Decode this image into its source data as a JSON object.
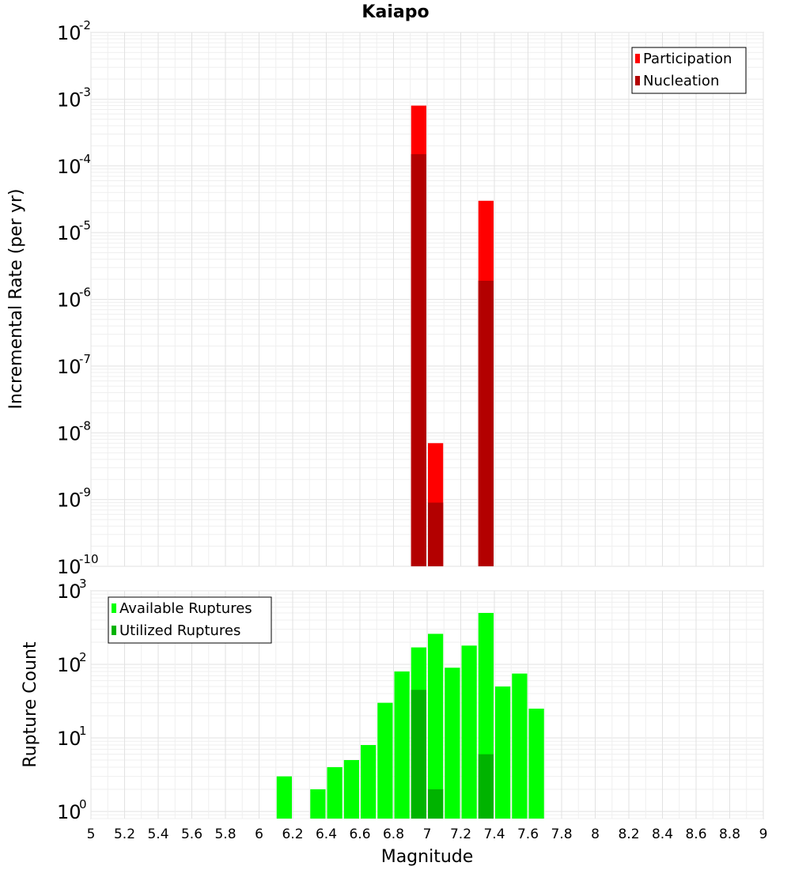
{
  "chart_data": [
    {
      "type": "bar",
      "title": "Kaiapo",
      "xlabel": "",
      "ylabel": "Incremental Rate (per yr)",
      "yscale": "log",
      "ylim": [
        1e-10,
        0.01
      ],
      "xlim": [
        5,
        9
      ],
      "yticks": [
        {
          "base": "10",
          "exp": "-2"
        },
        {
          "base": "10",
          "exp": "-3"
        },
        {
          "base": "10",
          "exp": "-4"
        },
        {
          "base": "10",
          "exp": "-5"
        },
        {
          "base": "10",
          "exp": "-6"
        },
        {
          "base": "10",
          "exp": "-7"
        },
        {
          "base": "10",
          "exp": "-8"
        },
        {
          "base": "10",
          "exp": "-9"
        },
        {
          "base": "10",
          "exp": "-10"
        }
      ],
      "legend_position": "top-right",
      "series": [
        {
          "name": "Participation",
          "color": "#ff0000",
          "x": [
            6.95,
            7.05,
            7.35
          ],
          "values": [
            0.0008,
            7e-09,
            3e-05
          ]
        },
        {
          "name": "Nucleation",
          "color": "#b30000",
          "x": [
            6.95,
            7.05,
            7.35
          ],
          "values": [
            0.00015,
            9e-10,
            1.9e-06
          ]
        }
      ]
    },
    {
      "type": "bar",
      "title": "",
      "xlabel": "Magnitude",
      "ylabel": "Rupture Count",
      "yscale": "log",
      "ylim": [
        0.8,
        1000
      ],
      "xlim": [
        5,
        9
      ],
      "yticks": [
        {
          "base": "10",
          "exp": "3"
        },
        {
          "base": "10",
          "exp": "2"
        },
        {
          "base": "10",
          "exp": "1"
        },
        {
          "base": "10",
          "exp": "0"
        }
      ],
      "xticks": [
        "5",
        "5.2",
        "5.4",
        "5.6",
        "5.8",
        "6",
        "6.2",
        "6.4",
        "6.6",
        "6.8",
        "7",
        "7.2",
        "7.4",
        "7.6",
        "7.8",
        "8",
        "8.2",
        "8.4",
        "8.6",
        "8.8",
        "9"
      ],
      "legend_position": "top-left",
      "series": [
        {
          "name": "Available Ruptures",
          "color": "#00ff00",
          "x": [
            6.15,
            6.35,
            6.45,
            6.55,
            6.65,
            6.75,
            6.85,
            6.95,
            7.05,
            7.15,
            7.25,
            7.35,
            7.45,
            7.55,
            7.65
          ],
          "values": [
            3,
            2,
            4,
            5,
            8,
            30,
            80,
            170,
            260,
            90,
            180,
            500,
            50,
            75,
            25
          ]
        },
        {
          "name": "Utilized Ruptures",
          "color": "#00b300",
          "x": [
            6.95,
            7.05,
            7.35
          ],
          "values": [
            45,
            2,
            6
          ]
        }
      ]
    }
  ]
}
